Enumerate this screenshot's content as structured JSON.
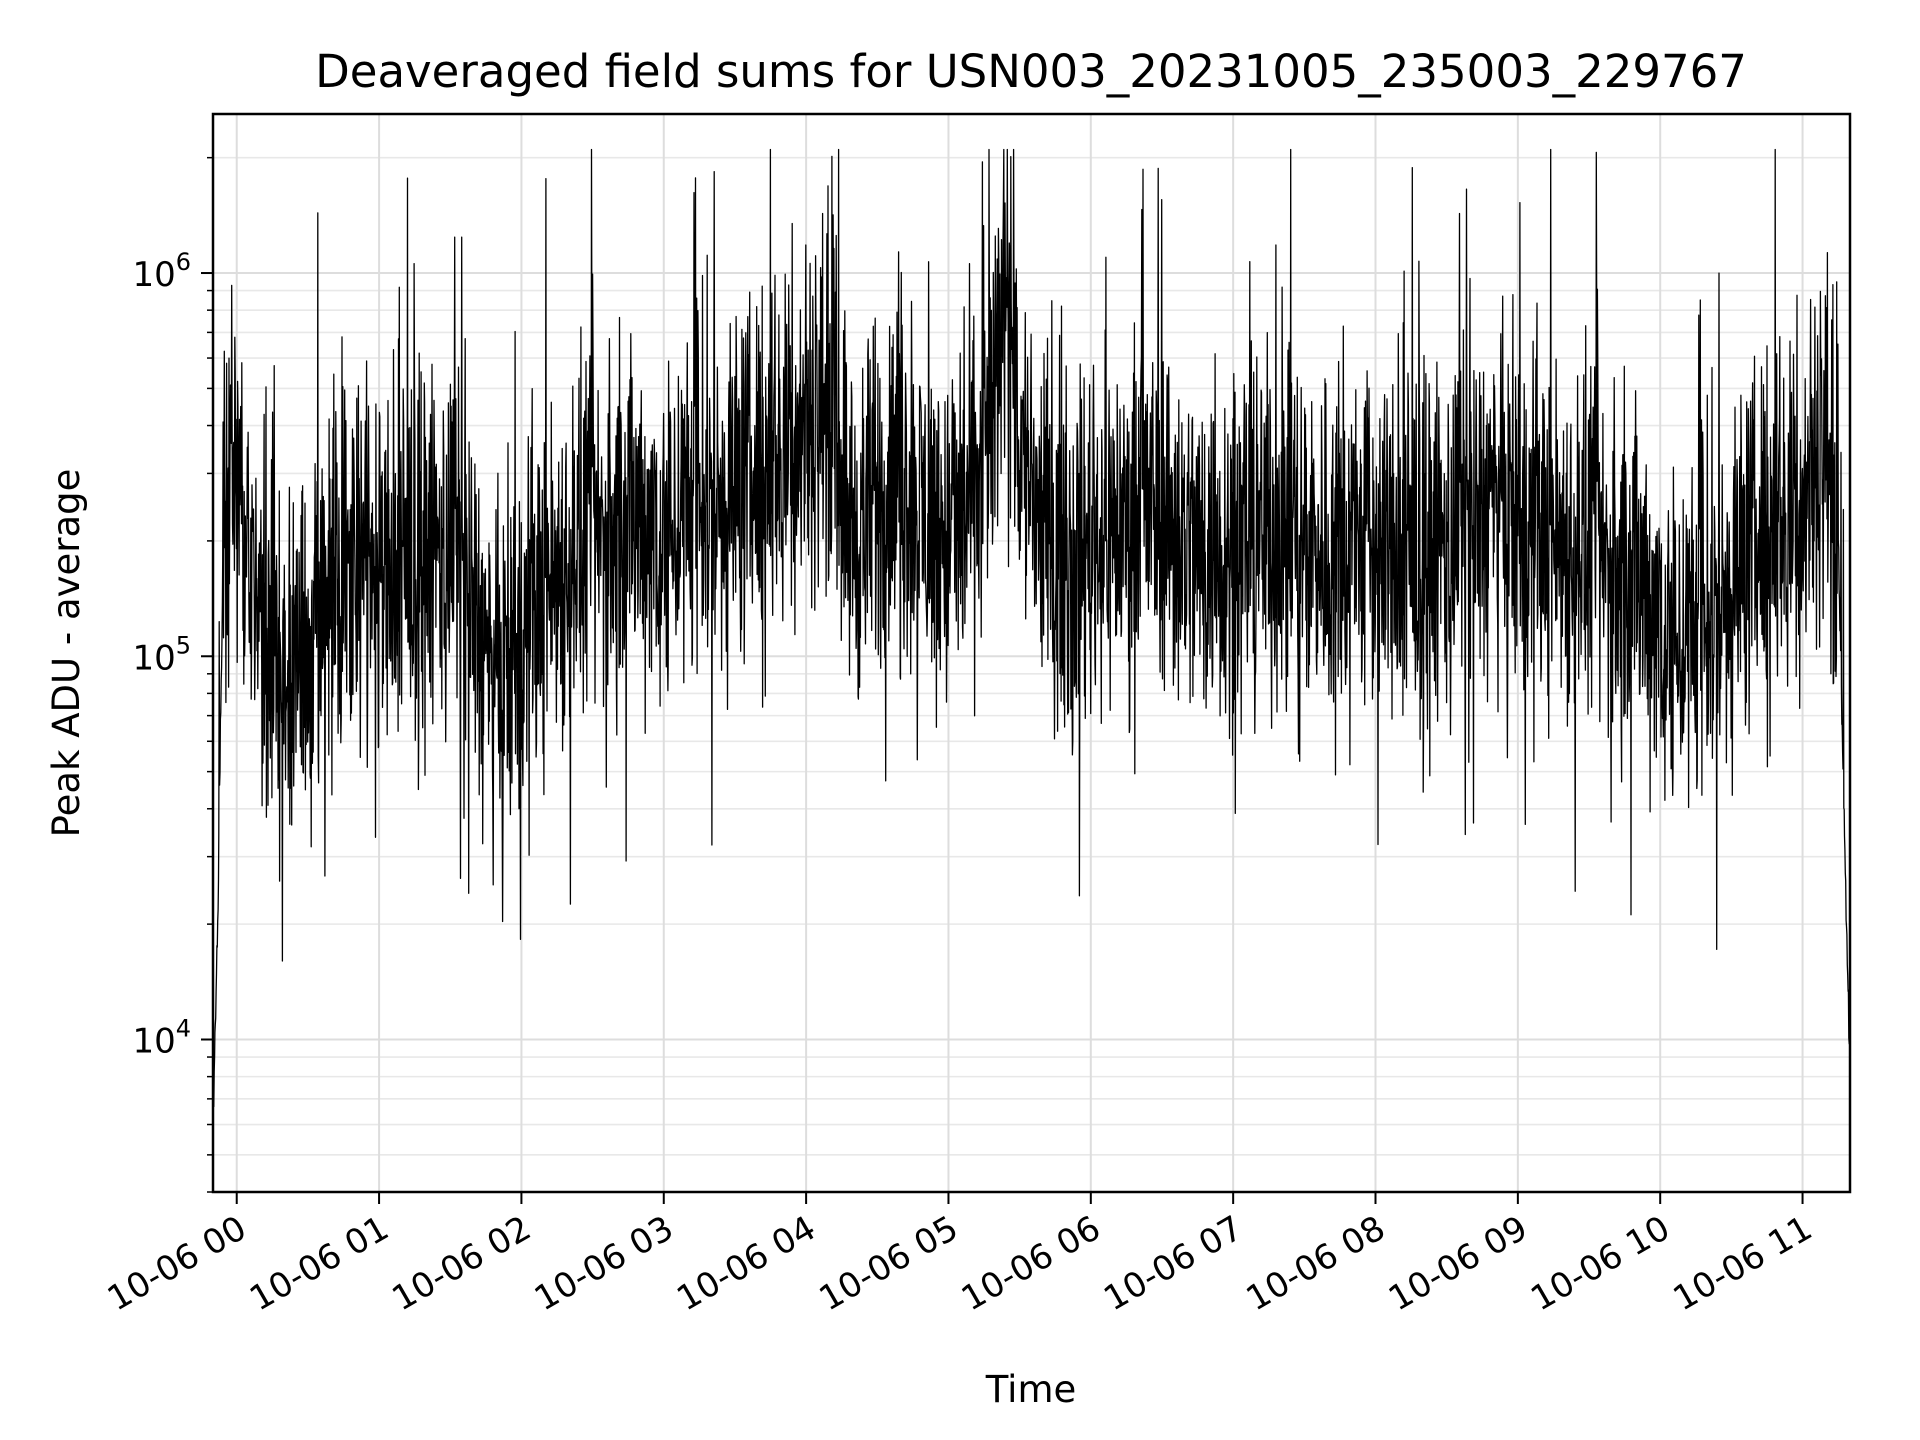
{
  "chart_data": {
    "type": "line",
    "title": "Deaveraged field sums for USN003_20231005_235003_229767",
    "xlabel": "Time",
    "ylabel": "Peak ADU - average",
    "yscale": "log",
    "ylim": [
      4000,
      2600000
    ],
    "xlim": [
      "2023-10-05 23:50",
      "2023-10-06 11:20"
    ],
    "grid": true,
    "line_color": "#000000",
    "x_ticks": [
      "2023-10-06 00:00",
      "2023-10-06 01:00",
      "2023-10-06 02:00",
      "2023-10-06 03:00",
      "2023-10-06 04:00",
      "2023-10-06 05:00",
      "2023-10-06 06:00",
      "2023-10-06 07:00",
      "2023-10-06 08:00",
      "2023-10-06 09:00",
      "2023-10-06 10:00",
      "2023-10-06 11:00"
    ],
    "x_tick_labels": [
      "10-06 00",
      "10-06 01",
      "10-06 02",
      "10-06 03",
      "10-06 04",
      "10-06 05",
      "10-06 06",
      "10-06 07",
      "10-06 08",
      "10-06 09",
      "10-06 10",
      "10-06 11"
    ],
    "y_ticks": [
      10000,
      100000,
      1000000
    ],
    "y_tick_labels": [
      {
        "base": "10",
        "exp": "4"
      },
      {
        "base": "10",
        "exp": "5"
      },
      {
        "base": "10",
        "exp": "6"
      }
    ],
    "series": [
      {
        "x": [
          "2023-10-05 23:50",
          "2023-10-05 23:52",
          "2023-10-05 23:54",
          "2023-10-05 23:56",
          "2023-10-05 23:58",
          "2023-10-06 00:00",
          "2023-10-06 00:05",
          "2023-10-06 00:10",
          "2023-10-06 00:15",
          "2023-10-06 00:20",
          "2023-10-06 00:30",
          "2023-10-06 00:40",
          "2023-10-06 00:50",
          "2023-10-06 01:00",
          "2023-10-06 01:10",
          "2023-10-06 01:20",
          "2023-10-06 01:30",
          "2023-10-06 01:40",
          "2023-10-06 01:45",
          "2023-10-06 01:50",
          "2023-10-06 02:00",
          "2023-10-06 02:10",
          "2023-10-06 02:20",
          "2023-10-06 02:30",
          "2023-10-06 02:40",
          "2023-10-06 02:50",
          "2023-10-06 03:00",
          "2023-10-06 03:10",
          "2023-10-06 03:20",
          "2023-10-06 03:30",
          "2023-10-06 03:40",
          "2023-10-06 03:50",
          "2023-10-06 04:00",
          "2023-10-06 04:10",
          "2023-10-06 04:20",
          "2023-10-06 04:30",
          "2023-10-06 04:40",
          "2023-10-06 04:50",
          "2023-10-06 05:00",
          "2023-10-06 05:10",
          "2023-10-06 05:20",
          "2023-10-06 05:25",
          "2023-10-06 05:30",
          "2023-10-06 05:40",
          "2023-10-06 05:50",
          "2023-10-06 06:00",
          "2023-10-06 06:10",
          "2023-10-06 06:20",
          "2023-10-06 06:30",
          "2023-10-06 06:40",
          "2023-10-06 06:50",
          "2023-10-06 07:00",
          "2023-10-06 07:10",
          "2023-10-06 07:20",
          "2023-10-06 07:30",
          "2023-10-06 07:40",
          "2023-10-06 07:50",
          "2023-10-06 08:00",
          "2023-10-06 08:10",
          "2023-10-06 08:20",
          "2023-10-06 08:30",
          "2023-10-06 08:40",
          "2023-10-06 08:50",
          "2023-10-06 09:00",
          "2023-10-06 09:10",
          "2023-10-06 09:20",
          "2023-10-06 09:30",
          "2023-10-06 09:40",
          "2023-10-06 09:50",
          "2023-10-06 10:00",
          "2023-10-06 10:10",
          "2023-10-06 10:20",
          "2023-10-06 10:30",
          "2023-10-06 10:40",
          "2023-10-06 10:50",
          "2023-10-06 11:00",
          "2023-10-06 11:05",
          "2023-10-06 11:10",
          "2023-10-06 11:15",
          "2023-10-06 11:20"
        ],
        "y": [
          6000,
          20000,
          150000,
          250000,
          400000,
          300000,
          180000,
          120000,
          100000,
          90000,
          110000,
          170000,
          190000,
          170000,
          160000,
          180000,
          200000,
          140000,
          90000,
          80000,
          110000,
          150000,
          180000,
          200000,
          220000,
          230000,
          220000,
          240000,
          250000,
          280000,
          300000,
          350000,
          420000,
          500000,
          200000,
          250000,
          300000,
          230000,
          200000,
          250000,
          500000,
          1500000,
          350000,
          220000,
          180000,
          200000,
          220000,
          230000,
          250000,
          200000,
          180000,
          200000,
          210000,
          220000,
          210000,
          190000,
          200000,
          190000,
          180000,
          170000,
          200000,
          230000,
          240000,
          220000,
          210000,
          200000,
          190000,
          170000,
          160000,
          130000,
          110000,
          120000,
          160000,
          200000,
          230000,
          250000,
          330000,
          400000,
          200000,
          8000
        ]
      }
    ]
  }
}
